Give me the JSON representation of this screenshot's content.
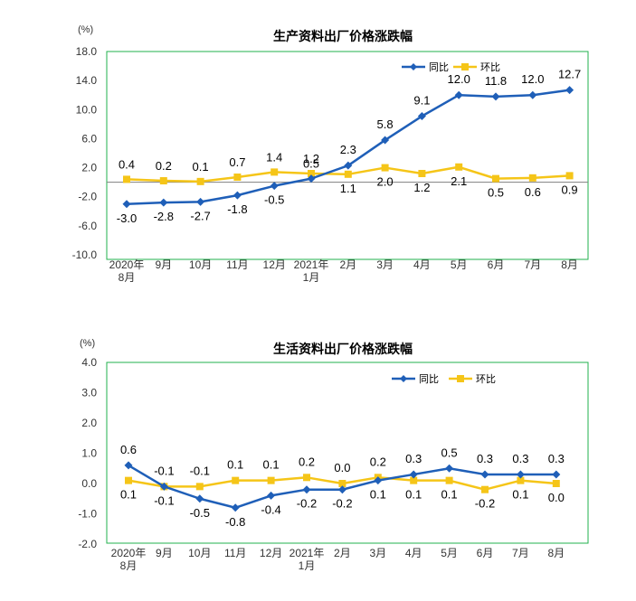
{
  "colors": {
    "yoy": "#1f5fb8",
    "mom": "#f5c518",
    "frame": "#22b14c",
    "axis": "#808080"
  },
  "chart_data": [
    {
      "type": "line",
      "title": "生产资料出厂价格涨跌幅",
      "unit": "(%)",
      "categories": [
        "2020年|8月",
        "9月",
        "10月",
        "11月",
        "12月",
        "2021年|1月",
        "2月",
        "3月",
        "4月",
        "5月",
        "6月",
        "7月",
        "8月"
      ],
      "ylim": [
        -10.0,
        18.0
      ],
      "yticks": [
        "18.0",
        "14.0",
        "10.0",
        "6.0",
        "2.0",
        "-2.0",
        "-6.0",
        "-10.0"
      ],
      "series": [
        {
          "name": "同比",
          "key": "yoy",
          "values": [
            -3.0,
            -2.8,
            -2.7,
            -1.8,
            -0.5,
            0.5,
            2.3,
            5.8,
            9.1,
            12.0,
            11.8,
            12.0,
            12.7
          ],
          "labels": [
            "-3.0",
            "-2.8",
            "-2.7",
            "-1.8",
            "-0.5",
            "0.5",
            "2.3",
            "5.8",
            "9.1",
            "12.0",
            "11.8",
            "12.0",
            "12.7"
          ]
        },
        {
          "name": "环比",
          "key": "mom",
          "values": [
            0.4,
            0.2,
            0.1,
            0.7,
            1.4,
            1.2,
            1.1,
            2.0,
            1.2,
            2.1,
            0.5,
            0.6,
            0.9
          ],
          "labels": [
            "0.4",
            "0.2",
            "0.1",
            "0.7",
            "1.4",
            "1.2",
            "1.1",
            "2.0",
            "1.2",
            "2.1",
            "0.5",
            "0.6",
            "0.9"
          ]
        }
      ]
    },
    {
      "type": "line",
      "title": "生活资料出厂价格涨跌幅",
      "unit": "(%)",
      "categories": [
        "2020年|8月",
        "9月",
        "10月",
        "11月",
        "12月",
        "2021年|1月",
        "2月",
        "3月",
        "4月",
        "5月",
        "6月",
        "7月",
        "8月"
      ],
      "ylim": [
        -2.0,
        4.0
      ],
      "yticks": [
        "4.0",
        "3.0",
        "2.0",
        "1.0",
        "0.0",
        "-1.0",
        "-2.0"
      ],
      "series": [
        {
          "name": "同比",
          "key": "yoy",
          "values": [
            0.6,
            -0.1,
            -0.5,
            -0.8,
            -0.4,
            -0.2,
            -0.2,
            0.1,
            0.3,
            0.5,
            0.3,
            0.3,
            0.3
          ],
          "labels": [
            "0.6",
            "-0.1",
            "-0.5",
            "-0.8",
            "-0.4",
            "-0.2",
            "-0.2",
            "0.1",
            "0.3",
            "0.5",
            "0.3",
            "0.3",
            "0.3"
          ]
        },
        {
          "name": "环比",
          "key": "mom",
          "values": [
            0.1,
            -0.1,
            -0.1,
            0.1,
            0.1,
            0.2,
            0.0,
            0.2,
            0.1,
            0.1,
            -0.2,
            0.1,
            0.0
          ],
          "labels": [
            "0.1",
            "-0.1",
            "-0.1",
            "0.1",
            "0.1",
            "0.2",
            "0.0",
            "0.2",
            "0.1",
            "0.1",
            "-0.2",
            "0.1",
            "0.0"
          ]
        }
      ]
    }
  ]
}
